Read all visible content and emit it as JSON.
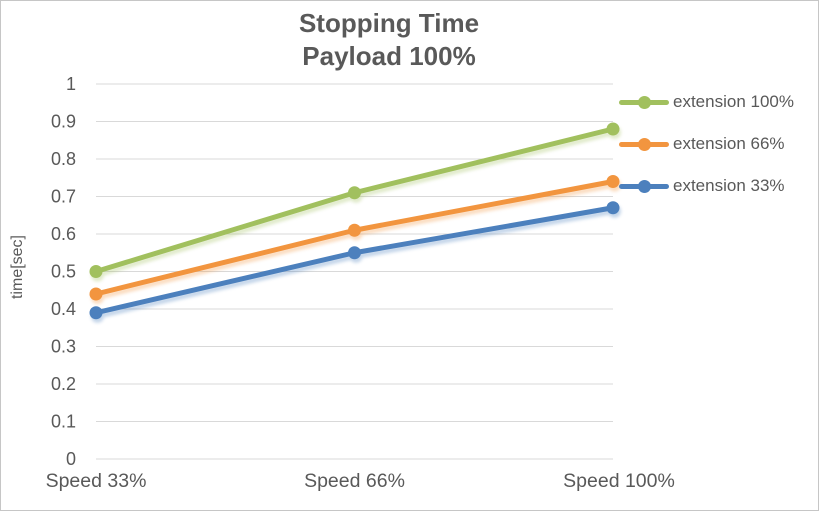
{
  "frame": {
    "background_color": "#ffffff",
    "border_color": "#c6c6c6"
  },
  "chart_data": {
    "type": "line",
    "title": "Stopping Time",
    "subtitle": "Payload 100%",
    "ylabel": "time[sec]",
    "xlabel": "",
    "categories": [
      "Speed 33%",
      "Speed 66%",
      "Speed 100%"
    ],
    "series": [
      {
        "name": "extension 100%",
        "color": "#a1c05e",
        "values": [
          0.5,
          0.71,
          0.88
        ]
      },
      {
        "name": "extension 66%",
        "color": "#f2953f",
        "values": [
          0.44,
          0.61,
          0.74
        ]
      },
      {
        "name": "extension 33%",
        "color": "#4c80bd",
        "values": [
          0.39,
          0.55,
          0.67
        ]
      }
    ],
    "ylim": [
      0,
      1
    ],
    "yticks": [
      0,
      0.1,
      0.2,
      0.3,
      0.4,
      0.5,
      0.6,
      0.7,
      0.8,
      0.9,
      1
    ],
    "grid": true,
    "grid_color": "#d9d9d9",
    "text_color": "#595959",
    "legend_position": "right",
    "marker": "circle",
    "line_shadow": true
  }
}
